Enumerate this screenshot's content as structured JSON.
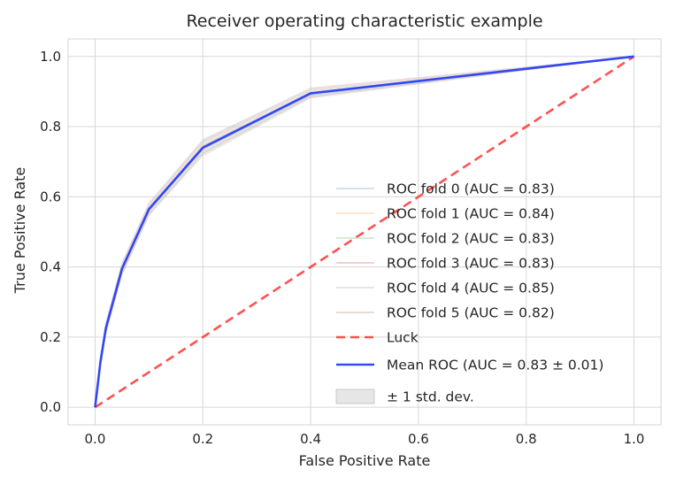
{
  "chart_data": {
    "type": "line",
    "title": "Receiver operating characteristic example",
    "xlabel": "False Positive Rate",
    "ylabel": "True Positive Rate",
    "xlim": [
      -0.05,
      1.05
    ],
    "ylim": [
      -0.05,
      1.05
    ],
    "xticks": [
      "0.0",
      "0.2",
      "0.4",
      "0.6",
      "0.8",
      "1.0"
    ],
    "yticks": [
      "0.0",
      "0.2",
      "0.4",
      "0.6",
      "0.8",
      "1.0"
    ],
    "grid": true,
    "legend_position": "lower-right",
    "series": [
      {
        "name": "ROC fold 0 (AUC = 0.83)",
        "color": "#a6c8e6",
        "x": [
          0,
          0.01,
          0.02,
          0.05,
          0.1,
          0.2,
          0.4,
          1.0
        ],
        "y": [
          0,
          0.13,
          0.22,
          0.39,
          0.56,
          0.735,
          0.89,
          1.0
        ]
      },
      {
        "name": "ROC fold 1 (AUC = 0.84)",
        "color": "#fdcfa6",
        "x": [
          0,
          0.01,
          0.02,
          0.05,
          0.1,
          0.2,
          0.4,
          1.0
        ],
        "y": [
          0,
          0.14,
          0.235,
          0.405,
          0.575,
          0.755,
          0.905,
          1.0
        ]
      },
      {
        "name": "ROC fold 2 (AUC = 0.83)",
        "color": "#b3d9b3",
        "x": [
          0,
          0.01,
          0.02,
          0.05,
          0.1,
          0.2,
          0.4,
          1.0
        ],
        "y": [
          0,
          0.13,
          0.225,
          0.395,
          0.565,
          0.74,
          0.895,
          1.0
        ]
      },
      {
        "name": "ROC fold 3 (AUC = 0.83)",
        "color": "#e8a6a6",
        "x": [
          0,
          0.01,
          0.02,
          0.05,
          0.1,
          0.2,
          0.4,
          1.0
        ],
        "y": [
          0,
          0.13,
          0.23,
          0.395,
          0.565,
          0.745,
          0.895,
          1.0
        ]
      },
      {
        "name": "ROC fold 4 (AUC = 0.85)",
        "color": "#d4cce0",
        "x": [
          0,
          0.01,
          0.02,
          0.05,
          0.1,
          0.2,
          0.4,
          1.0
        ],
        "y": [
          0,
          0.145,
          0.24,
          0.41,
          0.58,
          0.76,
          0.91,
          1.0
        ]
      },
      {
        "name": "ROC fold 5 (AUC = 0.82)",
        "color": "#d9b8a8",
        "x": [
          0,
          0.01,
          0.02,
          0.05,
          0.1,
          0.2,
          0.4,
          1.0
        ],
        "y": [
          0,
          0.12,
          0.215,
          0.38,
          0.55,
          0.725,
          0.885,
          1.0
        ]
      },
      {
        "name": "Luck",
        "color": "#ff3333",
        "dashed": true,
        "x": [
          0,
          1
        ],
        "y": [
          0,
          1
        ]
      },
      {
        "name": "Mean ROC (AUC = 0.83 ± 0.01)",
        "color": "#2a3ff5",
        "x": [
          0,
          0.01,
          0.02,
          0.05,
          0.1,
          0.2,
          0.4,
          1.0
        ],
        "y": [
          0,
          0.13,
          0.225,
          0.395,
          0.565,
          0.74,
          0.895,
          1.0
        ]
      }
    ],
    "band": {
      "name": "± 1 std. dev.",
      "color": "#c8c8c8",
      "x": [
        0,
        0.01,
        0.02,
        0.05,
        0.1,
        0.2,
        0.4,
        1.0
      ],
      "lower": [
        0,
        0.115,
        0.205,
        0.375,
        0.545,
        0.715,
        0.88,
        1.0
      ],
      "upper": [
        0,
        0.15,
        0.245,
        0.415,
        0.585,
        0.765,
        0.91,
        1.0
      ]
    }
  }
}
